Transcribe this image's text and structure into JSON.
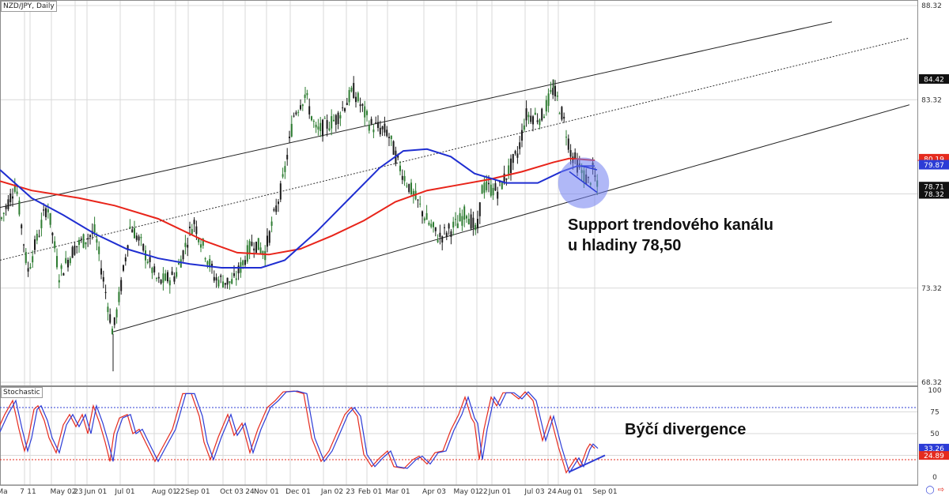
{
  "chart_data": [
    {
      "type": "candlestick",
      "symbol_label": "NZD/JPY, Daily",
      "price_axis": {
        "ticks": [
          88.32,
          84.42,
          83.32,
          80.19,
          79.87,
          78.71,
          78.32,
          73.32,
          68.32
        ],
        "plain_ticks": [
          "88.32",
          "83.32",
          "73.32",
          "68.32"
        ],
        "markers": [
          {
            "value": "84.42",
            "style": "dark"
          },
          {
            "value": "80.19",
            "style": "red"
          },
          {
            "value": "79.87",
            "style": "blue"
          },
          {
            "value": "78.71",
            "style": "dark"
          },
          {
            "value": "78.32",
            "style": "dark"
          }
        ],
        "ylim": [
          68.32,
          88.32
        ]
      },
      "x_tick_labels": [
        "Ma",
        "7",
        "11",
        "May 02",
        "23",
        "Jun 01",
        "Jul 01",
        "Aug 01",
        "22",
        "Sep 01",
        "Oct 03",
        "24",
        "Nov 01",
        "Dec 01",
        "Jan 02",
        "23",
        "Feb 01",
        "Mar 01",
        "Apr 03",
        "May 01",
        "22",
        "Jun 01",
        "Jul 03",
        "24",
        "Aug 01",
        "Sep 01"
      ],
      "price_path": [
        [
          0,
          76.8
        ],
        [
          20,
          78.9
        ],
        [
          35,
          74.2
        ],
        [
          60,
          77.8
        ],
        [
          75,
          74.0
        ],
        [
          95,
          75.5
        ],
        [
          120,
          76.3
        ],
        [
          143,
          70.9
        ],
        [
          155,
          73.9
        ],
        [
          165,
          76.7
        ],
        [
          180,
          75.5
        ],
        [
          200,
          73.6
        ],
        [
          222,
          74.0
        ],
        [
          245,
          76.9
        ],
        [
          272,
          73.8
        ],
        [
          295,
          73.6
        ],
        [
          320,
          75.8
        ],
        [
          335,
          75.2
        ],
        [
          358,
          79.0
        ],
        [
          372,
          82.6
        ],
        [
          386,
          83.6
        ],
        [
          400,
          81.6
        ],
        [
          425,
          82.3
        ],
        [
          447,
          83.8
        ],
        [
          468,
          82.0
        ],
        [
          490,
          81.6
        ],
        [
          505,
          79.8
        ],
        [
          520,
          78.5
        ],
        [
          540,
          76.9
        ],
        [
          555,
          76.0
        ],
        [
          578,
          76.7
        ],
        [
          590,
          77.4
        ],
        [
          603,
          76.2
        ],
        [
          610,
          78.7
        ],
        [
          630,
          78.5
        ],
        [
          655,
          80.5
        ],
        [
          665,
          82.5
        ],
        [
          685,
          82.4
        ],
        [
          700,
          83.9
        ],
        [
          712,
          82.4
        ],
        [
          722,
          80.5
        ],
        [
          735,
          79.5
        ],
        [
          745,
          78.9
        ],
        [
          750,
          79.6
        ],
        [
          756,
          78.5
        ]
      ],
      "ma_red": [
        [
          0,
          79.0
        ],
        [
          40,
          78.5
        ],
        [
          100,
          78.1
        ],
        [
          145,
          77.7
        ],
        [
          200,
          77.0
        ],
        [
          260,
          75.8
        ],
        [
          300,
          75.2
        ],
        [
          340,
          75.1
        ],
        [
          380,
          75.4
        ],
        [
          420,
          76.1
        ],
        [
          460,
          76.9
        ],
        [
          500,
          77.9
        ],
        [
          540,
          78.5
        ],
        [
          580,
          78.8
        ],
        [
          620,
          79.1
        ],
        [
          660,
          79.5
        ],
        [
          700,
          80.0
        ],
        [
          720,
          80.2
        ],
        [
          752,
          80.1
        ]
      ],
      "ma_blue": [
        [
          0,
          79.6
        ],
        [
          40,
          78.1
        ],
        [
          80,
          77.2
        ],
        [
          120,
          76.2
        ],
        [
          160,
          75.4
        ],
        [
          200,
          74.9
        ],
        [
          240,
          74.6
        ],
        [
          280,
          74.4
        ],
        [
          330,
          74.4
        ],
        [
          360,
          74.8
        ],
        [
          400,
          76.3
        ],
        [
          440,
          78.0
        ],
        [
          480,
          79.7
        ],
        [
          510,
          80.6
        ],
        [
          540,
          80.7
        ],
        [
          570,
          80.3
        ],
        [
          600,
          79.4
        ],
        [
          640,
          78.9
        ],
        [
          680,
          78.9
        ],
        [
          710,
          79.5
        ],
        [
          730,
          79.8
        ],
        [
          752,
          79.8
        ]
      ],
      "channel": {
        "upper": [
          [
            0,
            77.6
          ],
          [
            1052,
            87.45
          ]
        ],
        "lower": [
          [
            143,
            71.0
          ],
          [
            1150,
            83.05
          ]
        ],
        "middle": [
          [
            0,
            74.8
          ],
          [
            1150,
            86.6
          ]
        ]
      },
      "highlight_circle": {
        "center": [
          738,
          78.9
        ],
        "radius_value": 1.35
      },
      "wedge_lines": [
        [
          [
            720,
            79.5
          ],
          [
            755,
            78.4
          ]
        ],
        [
          [
            735,
            79.8
          ],
          [
            755,
            79.6
          ]
        ]
      ],
      "annotation_lines": [
        "Support trendového kanálu",
        "u hladiny 78,50"
      ]
    },
    {
      "type": "line",
      "title": "Stochastic",
      "ylim": [
        0,
        100
      ],
      "ticks": [
        100,
        75,
        50,
        25,
        0
      ],
      "levels": [
        80,
        20
      ],
      "markers": [
        {
          "value": "33.26",
          "style": "blue"
        },
        {
          "value": "24.89",
          "style": "red"
        }
      ],
      "k_path": [
        [
          0,
          52
        ],
        [
          10,
          72
        ],
        [
          20,
          88
        ],
        [
          28,
          55
        ],
        [
          35,
          30
        ],
        [
          40,
          45
        ],
        [
          47,
          78
        ],
        [
          52,
          82
        ],
        [
          60,
          65
        ],
        [
          66,
          45
        ],
        [
          75,
          28
        ],
        [
          84,
          60
        ],
        [
          92,
          72
        ],
        [
          100,
          58
        ],
        [
          108,
          72
        ],
        [
          115,
          50
        ],
        [
          122,
          82
        ],
        [
          130,
          62
        ],
        [
          137,
          40
        ],
        [
          143,
          18
        ],
        [
          148,
          50
        ],
        [
          155,
          68
        ],
        [
          165,
          72
        ],
        [
          172,
          50
        ],
        [
          180,
          55
        ],
        [
          188,
          40
        ],
        [
          200,
          18
        ],
        [
          210,
          35
        ],
        [
          222,
          55
        ],
        [
          235,
          96
        ],
        [
          246,
          96
        ],
        [
          256,
          70
        ],
        [
          262,
          40
        ],
        [
          270,
          20
        ],
        [
          280,
          46
        ],
        [
          292,
          72
        ],
        [
          300,
          48
        ],
        [
          310,
          62
        ],
        [
          320,
          28
        ],
        [
          330,
          55
        ],
        [
          342,
          80
        ],
        [
          352,
          88
        ],
        [
          362,
          98
        ],
        [
          376,
          99
        ],
        [
          388,
          96
        ],
        [
          398,
          45
        ],
        [
          410,
          18
        ],
        [
          420,
          30
        ],
        [
          432,
          55
        ],
        [
          440,
          72
        ],
        [
          448,
          80
        ],
        [
          456,
          70
        ],
        [
          464,
          26
        ],
        [
          474,
          12
        ],
        [
          484,
          22
        ],
        [
          494,
          30
        ],
        [
          502,
          12
        ],
        [
          515,
          10
        ],
        [
          526,
          20
        ],
        [
          534,
          24
        ],
        [
          544,
          15
        ],
        [
          554,
          28
        ],
        [
          564,
          30
        ],
        [
          574,
          54
        ],
        [
          584,
          72
        ],
        [
          592,
          92
        ],
        [
          600,
          68
        ],
        [
          604,
          62
        ],
        [
          610,
          20
        ],
        [
          616,
          55
        ],
        [
          625,
          92
        ],
        [
          632,
          82
        ],
        [
          640,
          97
        ],
        [
          650,
          97
        ],
        [
          660,
          90
        ],
        [
          668,
          98
        ],
        [
          678,
          88
        ],
        [
          690,
          42
        ],
        [
          700,
          70
        ],
        [
          710,
          35
        ],
        [
          720,
          5
        ],
        [
          732,
          22
        ],
        [
          738,
          12
        ],
        [
          746,
          32
        ],
        [
          750,
          38
        ],
        [
          756,
          33
        ]
      ],
      "d_offset": -4,
      "divergence_line": [
        [
          720,
          6
        ],
        [
          765,
          25
        ]
      ],
      "annotation_lines": [
        "Býčí divergence"
      ]
    }
  ],
  "icons": [
    "chart-layout-icon",
    "arrow-out-icon"
  ],
  "colors": {
    "bull": "#2e7d32",
    "bear": "#1b1b1b",
    "ma_red": "#e8241a",
    "ma_blue": "#1f2ed1",
    "grid": "#d9d9d9",
    "circle_fill": "#6f7ef0",
    "level_blue": "#2c3cd6",
    "level_red": "#e52b1e"
  }
}
